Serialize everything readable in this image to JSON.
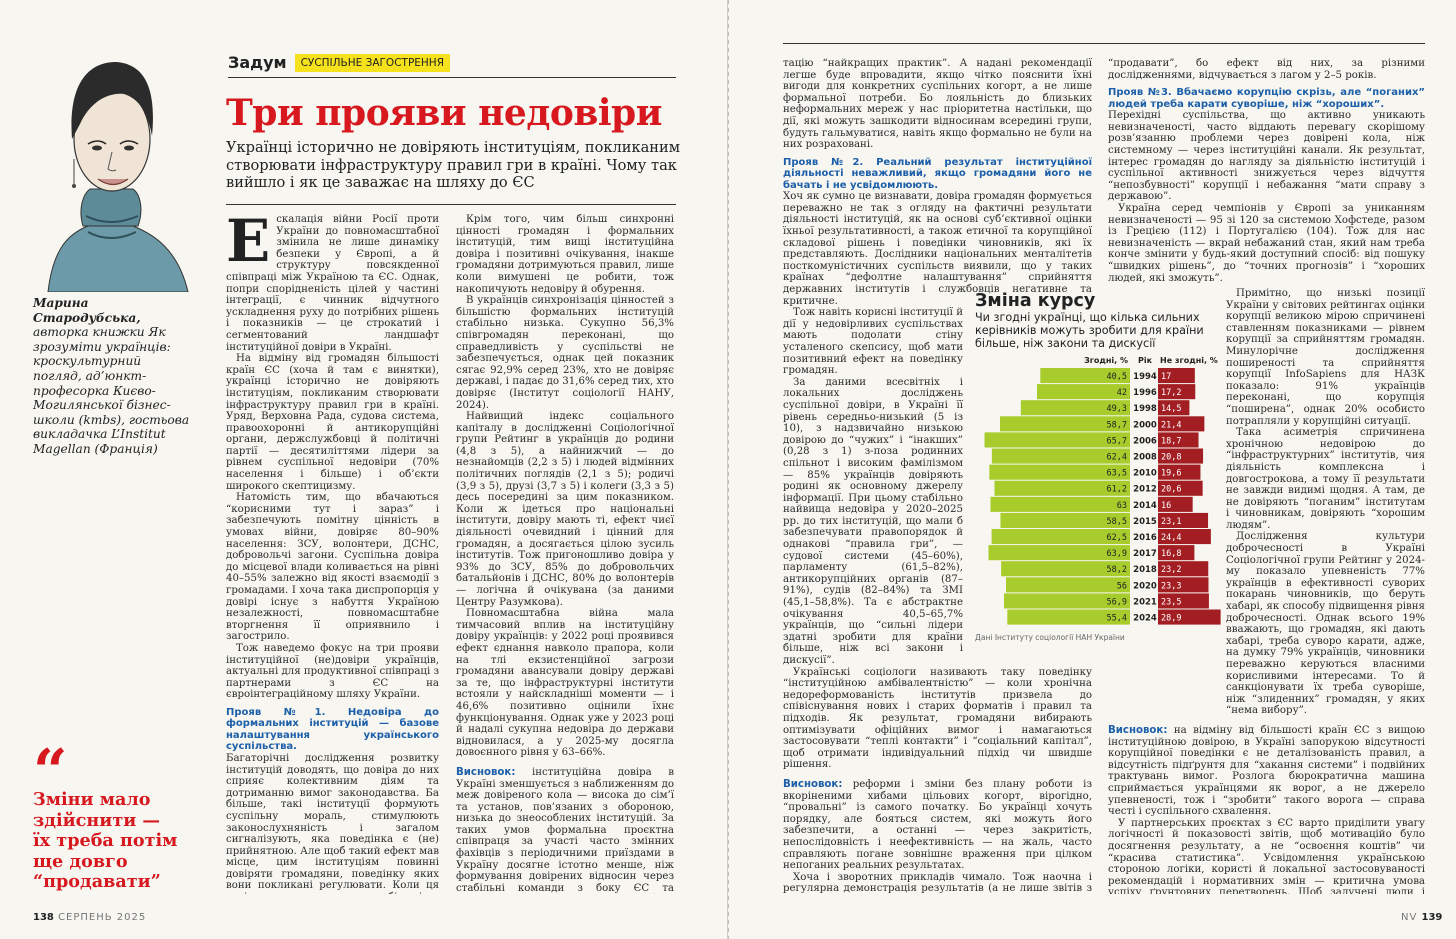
{
  "left": {
    "rubric": "Задум",
    "tag": "СУСПІЛЬНЕ ЗАГОСТРЕННЯ",
    "title": "Три прояви недовіри",
    "lead": "Українці історично не довіряють інституціям, покликаним створювати інфраструктуру правил гри в країні. Чому так вийшло і як це заважає на шляху до ЄС",
    "author_name": "Марина Стародубська,",
    "author_bio": "авторка книжки Як зрозуміти українців: кроскультурний погляд, ад’юнкт-професорка Києво-Могилянської бізнес-школи (kmbs), гостьова викладачка L’Institut Magellan (Франція)",
    "quote": "Зміни мало здійснити — їх треба потім ще довго “продавати”",
    "col1": {
      "dropcap": "Е",
      "p1": "скалація війни Росії проти України до повномасштабної змінила не лише динаміку безпеки у Європі, а й структуру повсякденної співпраці між Україною та ЄС. Однак, попри спорідненість цілей у частині інтеграції, є чинник відчутного ускладнення руху до потрібних рішень і показників — це строкатий і сегментований ландшафт інституційної довіри в Україні.",
      "p2": "На відміну від громадян більшості країн ЄС (хоча й там є винятки), українці історично не довіряють інституціям, покликаним створювати інфраструктуру правил гри в країні. Уряд, Верховна Рада, судова система, правоохоронні й антикорупційні органи, держслужбовці й політичні партії — десятиліттями лідери за рівнем суспільної недовіри (70% населення і більше) і об’єкти широкого скептицизму.",
      "p3": "Натомість тим, що вбачаються “корисними тут і зараз” і забезпечують помітну цінність в умовах війни, довіряє 80–90% населення: ЗСУ, волонтери, ДСНС, добровольчі загони. Суспільна довіра до місцевої влади коливається на рівні 40–55% залежно від якості взаємодії з громадами. І хоча така диспропорція у довірі існує з набуття Україною незалежності, повномасштабне вторгнення її оприявнило і загострило.",
      "p4": "Тож наведемо фокус на три прояви інституційної (не)довіри українців, актуальні для продуктивної співпраці з партнерами з ЄС на євроінтеграційному шляху України.",
      "sub1": "Прояв №1. Недовіра до формальних інституцій — базове налаштування українського суспільства.",
      "p5": "Багаторічні дослідження розвитку інституцій доводять, що довіра до них сприяє колективним діям та дотриманню вимог законодавства. Ба більше, такі інституції формують суспільну мораль, стимулюють законослухняність і загалом сигналізують, яка поведінка є (не) прийнятною. Але щоб такий ефект мав місце, цим інституціям повинні довіряти громадяни, поведінку яких вони покликані регулювати. Коли ця довіра є достатньо низькою, більшість населення уникає громадянської та політичної участі й залучення інституцій до проблем і питань, які можуть бути вирішені за допомогою знайомств."
    },
    "col2": {
      "p1": "Крім того, чим більш синхронні цінності громадян і формальних інституцій, тим вищі інституційна довіра і позитивні очікування, інакше громадяни дотримуються правил, лише коли вимушені це робити, тож накопичують недовіру й обурення.",
      "p2": "В українців синхронізація цінностей з більшістю формальних інституцій стабільно низька. Сукупно 56,3% співгромадян переконані, що справедливість у суспільстві не забезпечується, однак цей показник сягає 92,9% серед 23%, хто не довіряє державі, і падає до 31,6% серед тих, хто довіряє (Інститут соціології НАНУ, 2024).",
      "p3": "Найвищий індекс соціального капіталу в дослідженні Соціологічної групи Рейтинг в українців до родини (4,8 з 5), а найнижчий — до незнайомців (2,2 з 5) і людей відмінних політичних поглядів (2,1 з 5); родичі (3,9 з 5), друзі (3,7 з 5) і колеги (3,3 з 5) десь посередині за цим показником. Коли ж ідеться про національні інститути, довіру мають ті, ефект чиєї діяльності очевидний і цінний для громадян, а досягається цілою зусиль інститутів. Тож пригоношливо довіра у 93% до ЗСУ, 85% до добровольчих батальйонів і ДСНС, 80% до волонтерів — логічна й очікувана (за даними Центру Разумкова).",
      "p4": "Повномасштабна війна мала тимчасовий вплив на інституційну довіру українців: у 2022 році проявився ефект єднання навколо прапора, коли на тлі екзистенційної загрози громадяни авансували довіру державі за те, що інфраструктурні інститути встояли у найскладніші моменти — і 46,6% позитивно оцінили їхнє функціонування. Однак уже у 2023 році й надалі сукупна недовіра до держави відновилася, а у 2025-му досягла довоєнного рівня у 63–66%.",
      "concl_label": "Висновок:",
      "concl": " інституційна довіра в Україні зменшується з наближенням до меж довіреного кола — висока до сім’ї та установ, пов’язаних з обороною, низька до знеособлених інституцій. За таких умов формальна проєктна співпраця за участі часто змінних фахівців з періодичними приїздами в Україну досягне істотно менше, ніж формування довірених відносин через стабільні команди з боку ЄС та України, які постійно і глибоко взаємодіють через дискусії, обмін інсайтами та адап-"
    },
    "folio_num": "138",
    "folio_text": "СЕРПЕНЬ 2025"
  },
  "right": {
    "col1": {
      "p1": "тацію “найкращих практик”. А надані рекомендації легше буде впровадити, якщо чітко пояснити їхні вигоди для конкретних суспільних когорт, а не лише формальної потреби. Бо лояльність до близьких неформальних мереж у нас пріоритетна настільки, що дії, які можуть зашкодити відносинам всередині групи, будуть гальмуватися, навіть якщо формально не були на них розраховані.",
      "sub2": "Прояв №2. Реальний результат інституційної діяльності неважливий, якщо громадяни його не бачать і не усвідомлюють.",
      "p2": "Хоч як сумно це визнавати, довіра громадян формується переважно не так з огляду на фактичні результати діяльності інституцій, як на основі суб’єктивної оцінки їхньої результативності, а також етичної та корупційної складової рішень і поведінки чиновників, які їх представляють. Дослідники національних менталітетів посткомуністичних суспільств виявили, що у таких країнах “дефолтне налаштування” сприйняття державних інститутів і службовців негативне та критичне.",
      "p3": "Тож навіть корисні інституції й дії у недовірливих суспільствах мають подолати стіну усталеного скепсису, щоб мати позитивний ефект на поведінку громадян.",
      "p4": "За даними всесвітніх і локальних досліджень суспільної довіри, в Україні її рівень середньо-низький (5 із 10), з надзвичайно низькою довірою до “чужих” і “інакших” (0,28 з 1) з-поза родинних спільнот і високим фамілізмом — 85% українців довіряють родині як основному джерелу інформації. При цьому стабільно найвища недовіра у 2020–2025 рр. до тих інституцій, що мали б забезпечувати правопорядок й однакові “правила гри”, — судової системи (45–60%), парламенту (61,5–82%), антикорупційних органів (87–91%), судів (82–84%) та ЗМІ (45,1–58,8%). Та є абстрактне очікування 40,5–65,7% українців, що “сильні лідери здатні зробити для країни більше, ніж всі закони і дискусії”.",
      "p5": "Українські соціологи називають таку поведінку “інституційною амбівалентністю” — коли хронічна недореформованість інститутів призвела до співіснування нових і старих форматів і правил та підходів. Як результат, громадяни вибирають оптимізувати офіційних вимог і намагаються застосовувати “теплі контакти” і “соціальний капітал”, щоб отримати індивідуальний підхід чи швидше рішення.",
      "concl_label": "Висновок:",
      "concl": " реформи і зміни без плану роботи із вкоріненими хибами цільових когорт, вірогідно, “провальні” із самого початку. Бо українці хочуть порядку, але бояться систем, які можуть його забезпечити, а останні — через закритість, непослідовність і неефективність — на жаль, часто справляють погане зовнішнє враження при цілком непоганих реальних результатах.",
      "p6": "Хоча і зворотних прикладів чимало. Тож наочна і регулярна демонстрація результатів (а не лише звітів з показниками) — запорука шансу на зменшення недовіри. Саме так — неможливо скакнути з глибокої недовіри в довіру. Спочатку мусить зникнути скепсис і з’явитися готовність довіряти. Зміни мало здійснити — їх треба потім ще довго"
    },
    "col2": {
      "p1": "“продавати”, бо ефект від них, за різними дослідженнями, відчувається з лагом у 2–5 років.",
      "sub3": "Прояв №3. Вбачаємо корупцію скрізь, але “поганих” людей треба карати суворіше, ніж “хороших”.",
      "p2": "Перехідні суспільства, що активно уникають невизначеності, часто віддають перевагу скорішому розв’язанню проблеми через довірені кола, ніж системному — через інституційні канали. Як результат, інтерес громадян до нагляду за діяльністю інституцій і суспільної активності знижується через відчуття “непозбувності” корупції і небажання “мати справу з державою”.",
      "p3": "Україна серед чемпіонів у Європі за униканням невизначеності — 95 зі 120 за системою Хофстеде, разом із Грецією (112) і Португалією (104). Тож для нас невизначеність — вкрай небажаний стан, який нам треба конче змінити у будь-який доступний спосіб: від пошуку “швидких рішень”, до “точних прогнозів” і “хороших людей, які зможуть”."
    },
    "col3": {
      "p1": "Примітно, що низькі позиції України у світових рейтингах оцінки корупції великою мірою спричинені ставленням показниками — рівнем корупції за сприйняттям громадян. Минулорічне дослідження поширеності та сприйняття корупції InfoSapiens для НАЗК показало: 91% українців переконані, що корупція “поширена”, однак 20% особисто потрапляли у корупційні ситуації.",
      "p2": "Така асиметрія спричинена хронічною недовірою до “інфраструктурних” інститутів, чия діяльність комплексна і довгострокова, а тому її результати не завжди видимі щодня. А там, де не довіряють “поганим” інститутам і чиновникам, довіряють “хорошим людям”.",
      "p3": "Дослідження культури доброчесності в Україні Соціологічної групи Рейтинг у 2024-му показало упевненість 77% українців в ефективності суворих покарань чиновників, що беруть хабарі, як способу підвищення рівня доброчесності. Однак всього 19% вважають, що громадян, які дають хабарі, треба суворо карати, адже, на думку 79% українців, чиновники переважно керуються власними корисливими інтересами. То й санкціонувати їх треба суворіше, ніж “злиденних” громадян, у яких “нема вибору”.",
      "concl_label": "Висновок:",
      "concl": " на відміну від більшості країн ЄС з вищою інституційною довірою, в Україні запорукою відсутності корупційної поведінки є не деталізованість правил, а відсутність підґрунтя для “хакання системи” і подвійних трактувань вимог. Розлога бюрократична машина сприймається українцями як ворог, а не джерело упевненості, тож і “зробити” такого ворога — справа честі і суспільного схвалення.",
      "p4": "У партнерських проєктах з ЄС варто приділити увагу логічності й показовості звітів, щоб мотиваційо було досягнення результату, а не “освоєння коштів” чи “красива статистика”. Усвідомлення українською стороною логіки, користі й локальної застосовуваності рекомендацій і нормативних змін — критична умова успіху ґрунтовних перетворень. Щоб залучені люди і прямі бенефіціари реформ були їхніми амбасадорами і власним прикладом демонстрували потрібну поведінку."
    },
    "folio_num": "139",
    "folio_text": "NV"
  },
  "chart_data": {
    "type": "bar",
    "title": "Зміна курсу",
    "subtitle": "Чи згодні українці, що кілька сильних керівників можуть зробити для країни більше, ніж закони та дискусії",
    "col_agree": "Згодні, %",
    "col_year": "Рік",
    "col_disagree": "Не згодні, %",
    "source": "Дані Інституту соціології НАН України",
    "categories": [
      "1994",
      "1996",
      "1998",
      "2000",
      "2006",
      "2008",
      "2010",
      "2012",
      "2014",
      "2015",
      "2016",
      "2017",
      "2018",
      "2020",
      "2021",
      "2024"
    ],
    "series": [
      {
        "name": "Згодні, %",
        "color": "#a8cc2c",
        "values": [
          40.5,
          42,
          49.3,
          58.7,
          65.7,
          62.4,
          63.5,
          61.2,
          63,
          58.5,
          62.5,
          63.9,
          58.2,
          56,
          56.9,
          55.4
        ]
      },
      {
        "name": "Не згодні, %",
        "color": "#a31e22",
        "values": [
          17,
          17.2,
          14.5,
          21.4,
          18.7,
          20.8,
          19.6,
          20.6,
          16,
          23.1,
          24.4,
          16.8,
          23.2,
          23.3,
          23.5,
          28.9
        ]
      }
    ],
    "labels_agree": [
      "40,5",
      "42",
      "49,3",
      "58,7",
      "65,7",
      "62,4",
      "63,5",
      "61,2",
      "63",
      "58,5",
      "62,5",
      "63,9",
      "58,2",
      "56",
      "56,9",
      "55,4"
    ],
    "labels_disagree": [
      "17",
      "17,2",
      "14,5",
      "21,4",
      "18,7",
      "20,8",
      "19,6",
      "20,6",
      "16",
      "23,1",
      "24,4",
      "16,8",
      "23,2",
      "23,3",
      "23,5",
      "28,9"
    ],
    "xlim_agree": [
      0,
      70
    ],
    "xlim_disagree": [
      0,
      30
    ],
    "grid": false
  }
}
